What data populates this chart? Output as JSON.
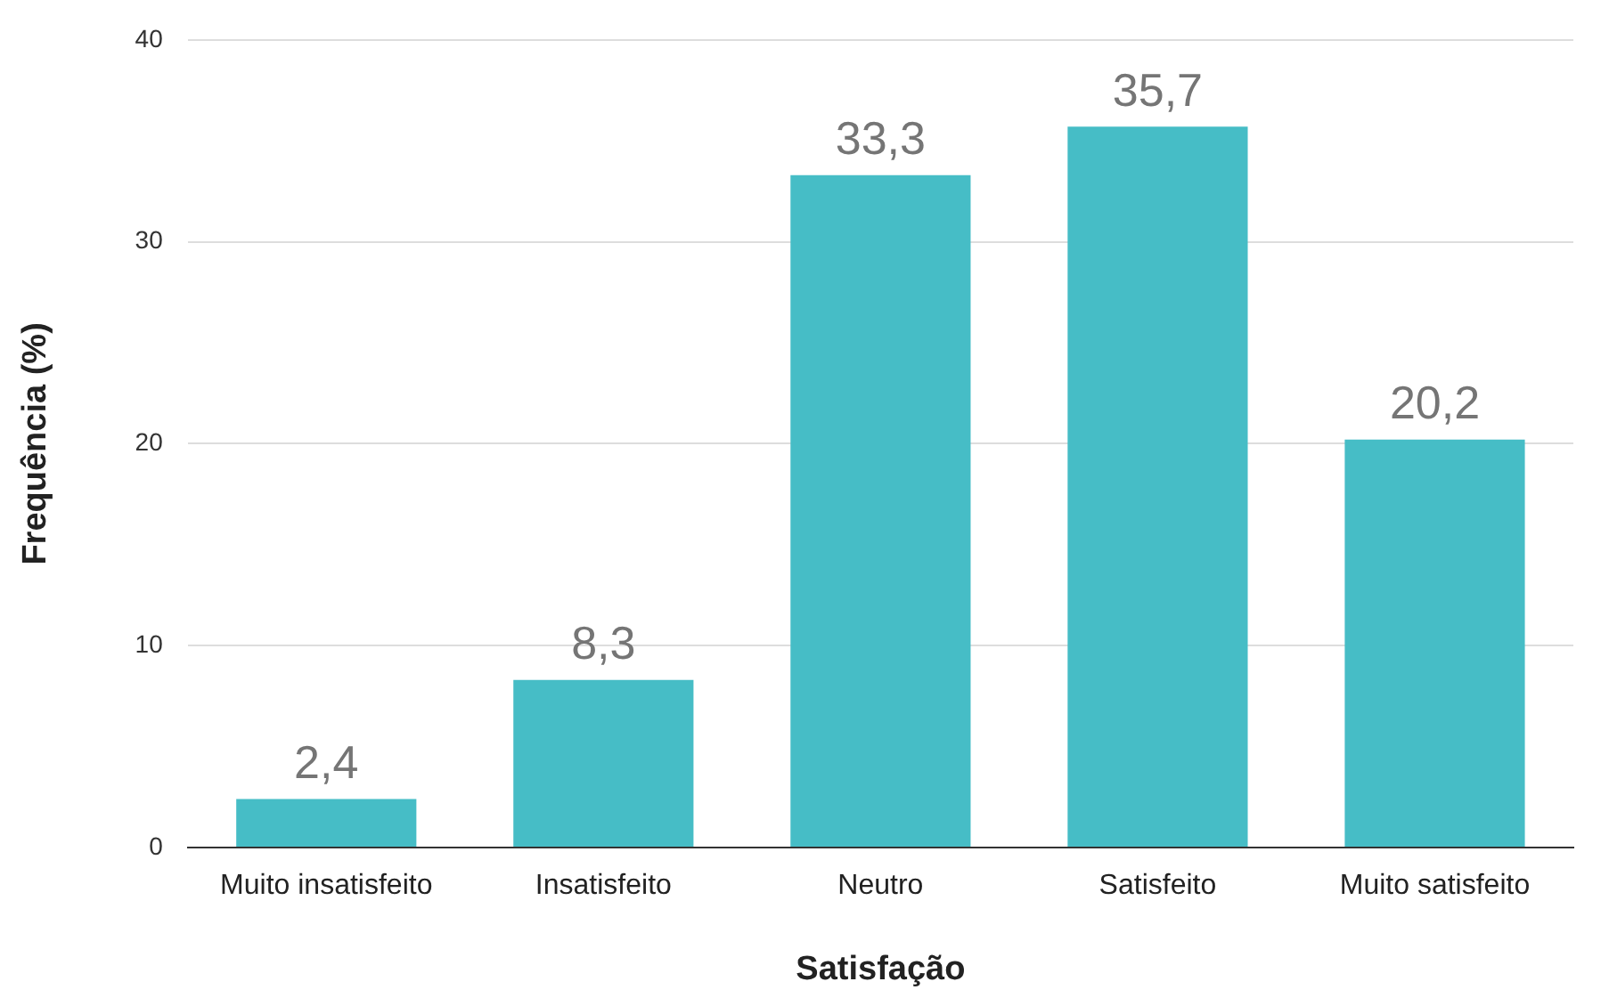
{
  "chart_data": {
    "type": "bar",
    "xlabel": "Satisfação",
    "ylabel": "Frequência (%)",
    "categories": [
      "Muito insatisfeito",
      "Insatisfeito",
      "Neutro",
      "Satisfeito",
      "Muito satisfeito"
    ],
    "values": [
      2.4,
      8.3,
      33.3,
      35.7,
      20.2
    ],
    "value_labels": [
      "2,4",
      "8,3",
      "33,3",
      "35,7",
      "20,2"
    ],
    "color": "#46bdc6",
    "ylim": [
      0,
      40
    ],
    "yticks": [
      0,
      10,
      20,
      30,
      40
    ],
    "grid": "y",
    "legend": false
  }
}
